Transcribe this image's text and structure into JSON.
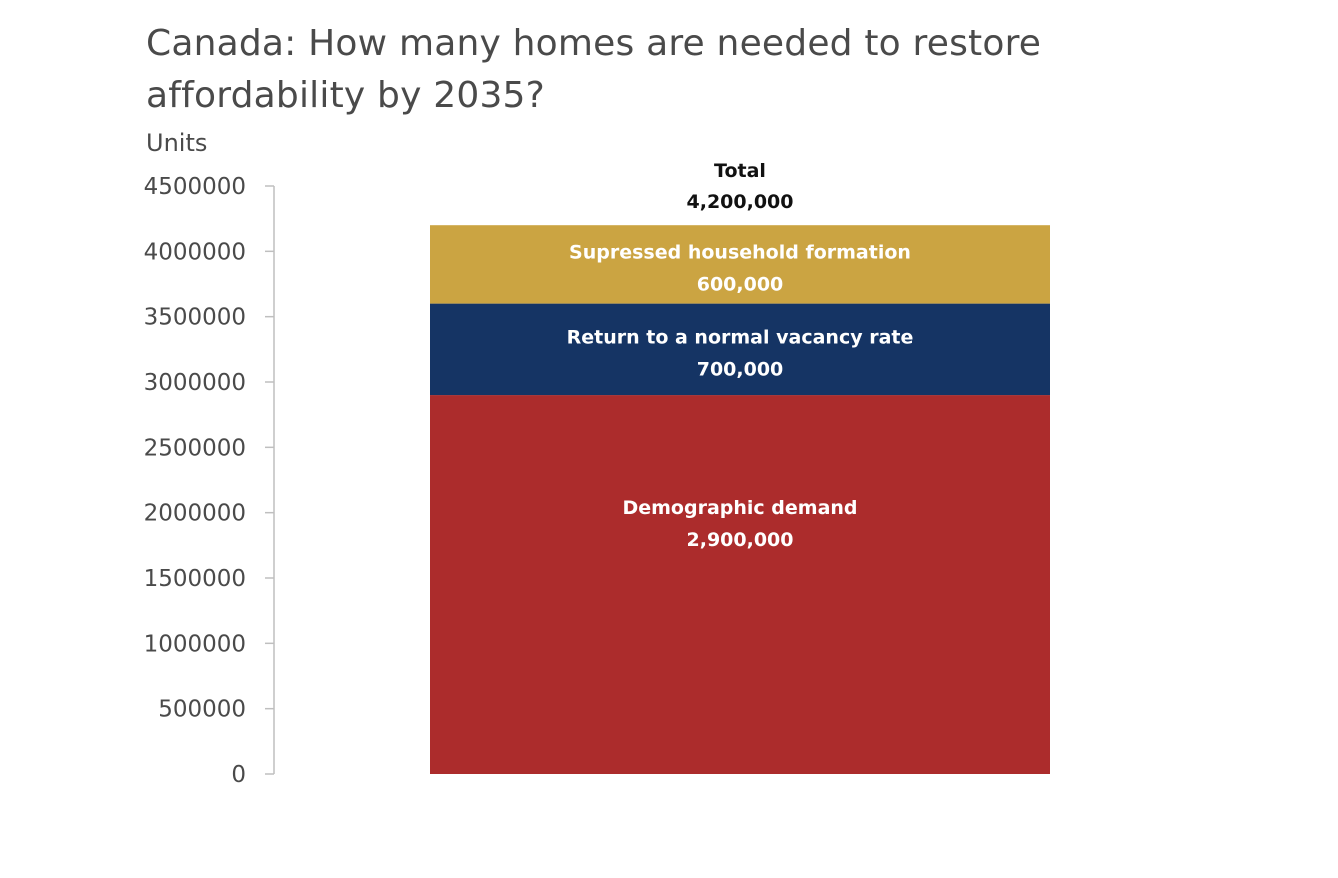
{
  "chart_data": {
    "type": "bar",
    "stacked": true,
    "title_lines": [
      "Canada: How many homes are needed to restore",
      "affordability by 2035?"
    ],
    "ylabel": "Units",
    "ylim": [
      0,
      4500000
    ],
    "yticks": [
      0,
      500000,
      1000000,
      1500000,
      2000000,
      2500000,
      3000000,
      3500000,
      4000000,
      4500000
    ],
    "ytick_labels": [
      "0",
      "500000",
      "1000000",
      "1500000",
      "2000000",
      "2500000",
      "3000000",
      "3500000",
      "4000000",
      "4500000"
    ],
    "grid": false,
    "total": {
      "label": "Total",
      "value": 4200000,
      "value_label": "4,200,000"
    },
    "series": [
      {
        "name": "Demographic demand",
        "value": 2900000,
        "value_label": "2,900,000",
        "color": "#ac2c2c"
      },
      {
        "name": "Return to a normal vacancy rate",
        "value": 700000,
        "value_label": "700,000",
        "color": "#153464"
      },
      {
        "name": "Supressed household formation",
        "value": 600000,
        "value_label": "600,000",
        "color": "#cba442"
      }
    ]
  }
}
